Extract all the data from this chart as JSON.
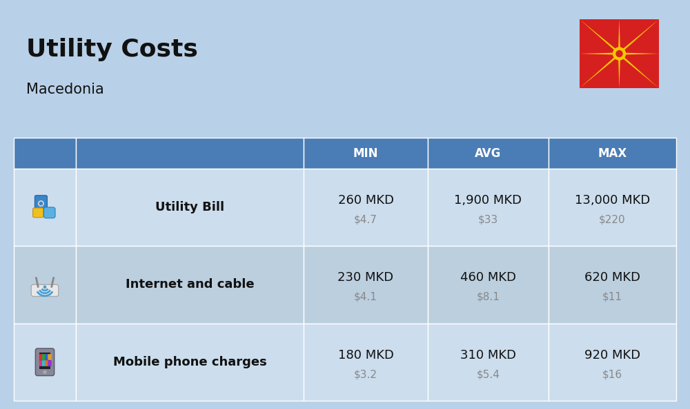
{
  "title": "Utility Costs",
  "subtitle": "Macedonia",
  "bg_color": "#b8d0e8",
  "header_bg": "#4a7db5",
  "header_text_color": "#ffffff",
  "row_colors_even": "#ccdded",
  "row_colors_odd": "#bccfdf",
  "cell_border": "#ffffff",
  "text_color": "#111111",
  "usd_color": "#888888",
  "col_headers": [
    "MIN",
    "AVG",
    "MAX"
  ],
  "rows": [
    {
      "label": "Utility Bill",
      "min_mkd": "260 MKD",
      "min_usd": "$4.7",
      "avg_mkd": "1,900 MKD",
      "avg_usd": "$33",
      "max_mkd": "13,000 MKD",
      "max_usd": "$220"
    },
    {
      "label": "Internet and cable",
      "min_mkd": "230 MKD",
      "min_usd": "$4.1",
      "avg_mkd": "460 MKD",
      "avg_usd": "$8.1",
      "max_mkd": "620 MKD",
      "max_usd": "$11"
    },
    {
      "label": "Mobile phone charges",
      "min_mkd": "180 MKD",
      "min_usd": "$3.2",
      "avg_mkd": "310 MKD",
      "avg_usd": "$5.4",
      "max_mkd": "920 MKD",
      "max_usd": "$16"
    }
  ],
  "flag_red": "#d62020",
  "flag_yellow": "#f5c800",
  "title_fontsize": 26,
  "subtitle_fontsize": 15,
  "header_fontsize": 12,
  "label_fontsize": 13,
  "value_fontsize": 13,
  "usd_fontsize": 11
}
